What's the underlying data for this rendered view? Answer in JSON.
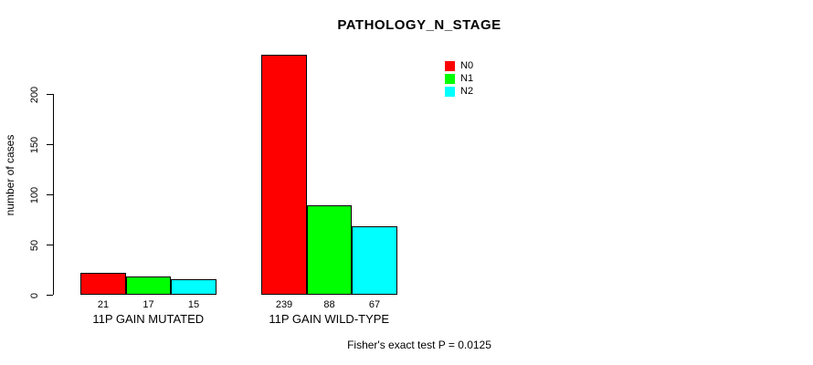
{
  "chart_data": {
    "type": "bar",
    "title": "PATHOLOGY_N_STAGE",
    "xlabel": "",
    "ylabel": "number of cases",
    "categories": [
      "11P GAIN MUTATED",
      "11P GAIN WILD-TYPE"
    ],
    "series": [
      {
        "name": "N0",
        "color": "#ff0000",
        "values": [
          21,
          239
        ]
      },
      {
        "name": "N1",
        "color": "#00ff00",
        "values": [
          17,
          88
        ]
      },
      {
        "name": "N2",
        "color": "#00ffff",
        "values": [
          15,
          67
        ]
      }
    ],
    "value_labels": [
      [
        "21",
        "17",
        "15"
      ],
      [
        "239",
        "88",
        "67"
      ]
    ],
    "yticks": [
      0,
      50,
      100,
      150,
      200
    ],
    "ylim": [
      0,
      245
    ],
    "grid": false,
    "legend_position": "top-right",
    "annotation": "Fisher's exact test P = 0.0125"
  },
  "colors": {
    "background": "#ffffff",
    "axis": "#000000",
    "text": "#000000",
    "n0": "#ff0000",
    "n1": "#00ff00",
    "n2": "#00ffff"
  }
}
